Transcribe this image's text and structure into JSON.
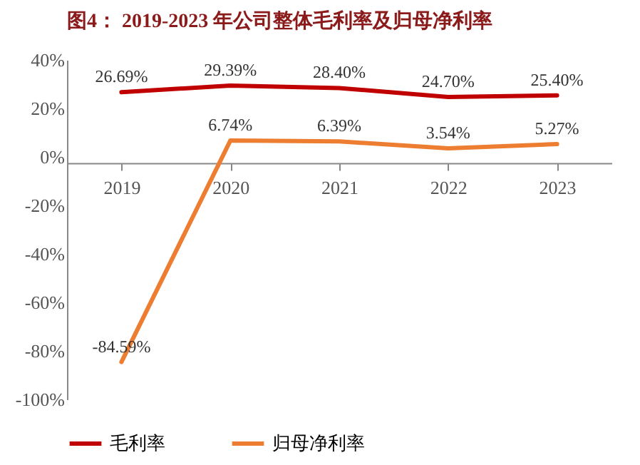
{
  "chart_data": {
    "type": "line",
    "title": "图4： 2019-2023 年公司整体毛利率及归母净利率",
    "categories": [
      "2019",
      "2020",
      "2021",
      "2022",
      "2023"
    ],
    "series": [
      {
        "name": "毛利率",
        "color": "#c00000",
        "values": [
          26.69,
          29.39,
          28.4,
          24.7,
          25.4
        ],
        "value_labels": [
          "26.69%",
          "29.39%",
          "28.40%",
          "24.70%",
          "25.40%"
        ]
      },
      {
        "name": "归母净利率",
        "color": "#ed7d31",
        "values": [
          -84.59,
          6.74,
          6.39,
          3.54,
          5.27
        ],
        "value_labels": [
          "-84.59%",
          "6.74%",
          "6.39%",
          "3.54%",
          "5.27%"
        ]
      }
    ],
    "ylim": [
      -100,
      40
    ],
    "yticks": [
      {
        "value": 40,
        "label": "40%"
      },
      {
        "value": 20,
        "label": "20%"
      },
      {
        "value": 0,
        "label": "0%"
      },
      {
        "value": -20,
        "label": "-20%"
      },
      {
        "value": -40,
        "label": "-40%"
      },
      {
        "value": -60,
        "label": "-60%"
      },
      {
        "value": -80,
        "label": "-80%"
      },
      {
        "value": -100,
        "label": "-100%"
      }
    ],
    "grid": false,
    "legend": "bottom",
    "marker": "none",
    "line_style": "solid"
  }
}
